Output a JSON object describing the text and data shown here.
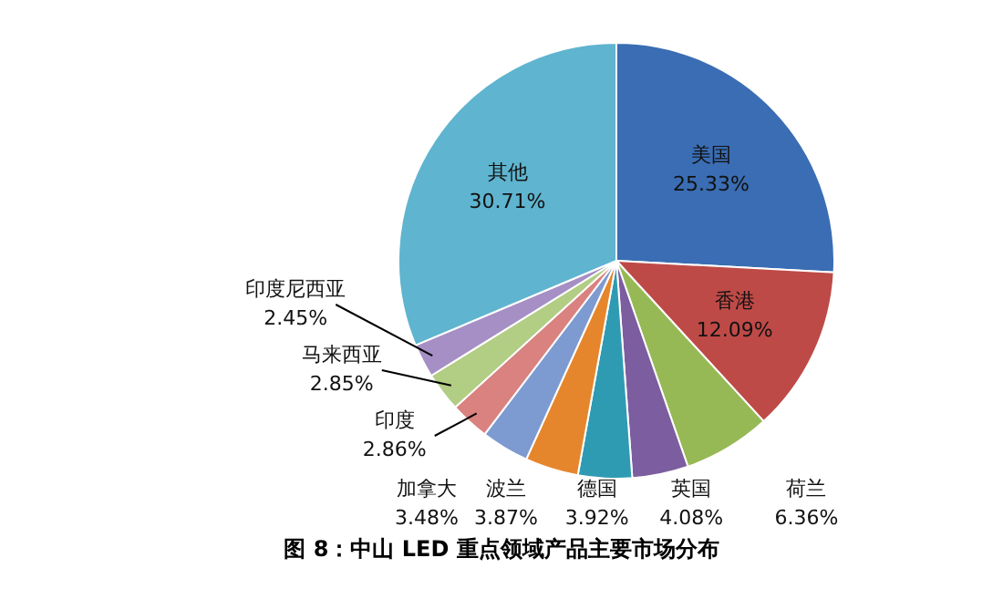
{
  "chart_data": {
    "type": "pie",
    "annotations": [
      "图 8：中山 LED 重点领域产品主要市场分布"
    ],
    "categories": [
      "美国",
      "香港",
      "荷兰",
      "英国",
      "德国",
      "波兰",
      "加拿大",
      "印度",
      "马来西亚",
      "印度尼西亚",
      "其他"
    ],
    "values": [
      25.33,
      12.09,
      6.36,
      4.08,
      3.92,
      3.87,
      3.48,
      2.86,
      2.85,
      2.45,
      30.71
    ],
    "value_labels": [
      "25.33%",
      "12.09%",
      "6.36%",
      "4.08%",
      "3.92%",
      "3.87%",
      "3.48%",
      "2.86%",
      "2.85%",
      "2.45%",
      "30.71%"
    ],
    "colors": [
      "#3a6db3",
      "#be4a47",
      "#96b956",
      "#7c5d9f",
      "#2f9bb3",
      "#e6862c",
      "#7d9bd0",
      "#d9827f",
      "#b2cd84",
      "#a58fc4",
      "#5fb4cf"
    ],
    "legend": false
  }
}
